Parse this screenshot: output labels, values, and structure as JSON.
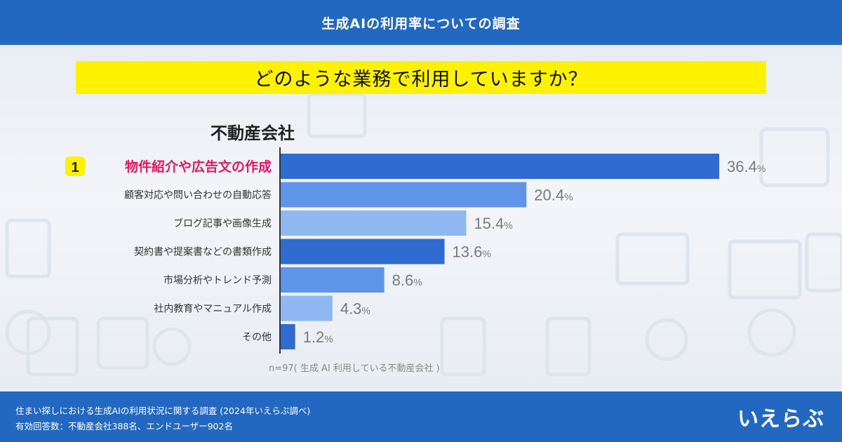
{
  "header": {
    "title": "生成AIの利用率についての調査"
  },
  "question": {
    "text": "どのような業務で利用していますか？"
  },
  "chart_data": {
    "type": "bar",
    "orientation": "horizontal",
    "title": "不動産会社",
    "categories": [
      "物件紹介や広告文の作成",
      "顧客対応や問い合わせの自動応答",
      "ブログ記事や画像生成",
      "契約書や提案書などの書類作成",
      "市場分析やトレンド予測",
      "社内教育やマニュアル作成",
      "その他"
    ],
    "values": [
      36.4,
      20.4,
      15.4,
      13.6,
      8.6,
      4.3,
      1.2
    ],
    "value_labels": [
      "36.4",
      "20.4",
      "15.4",
      "13.6",
      "8.6",
      "4.3",
      "1.2"
    ],
    "unit": "%",
    "rank_badge": "1",
    "highlight_index": 0,
    "bar_colors": [
      "#2f6bd0",
      "#5f95e8",
      "#8fb8f2",
      "#2f6bd0",
      "#5f95e8",
      "#8fb8f2",
      "#2f6bd0"
    ],
    "highlight_color": "#e0185a",
    "badge_color": "#fff200",
    "value_color": "#7a7a7a",
    "xlim": [
      0,
      40
    ],
    "grid": false,
    "note": "n=97( 生成 AI 利用している不動産会社 )"
  },
  "footer": {
    "line1": "住まい探しにおける生成AIの利用状況に関する調査 (2024年いえらぶ調べ)",
    "line2": "有効回答数：不動産会社388名、エンドユーザー902名",
    "logo_text": "いえらぶ"
  }
}
